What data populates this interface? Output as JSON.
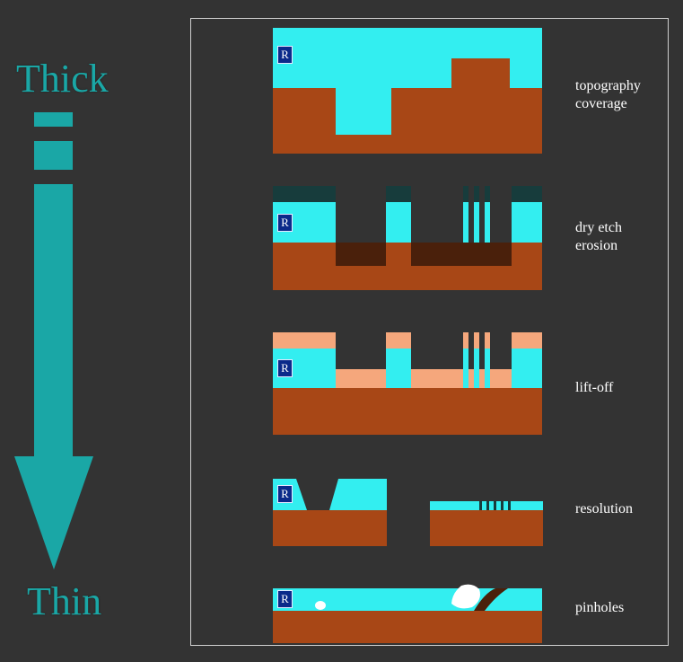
{
  "scale": {
    "top_label": "Thick",
    "bottom_label": "Thin"
  },
  "badge_letter": "R",
  "rows": [
    {
      "label_line1": "topography",
      "label_line2": "coverage"
    },
    {
      "label_line1": "dry etch",
      "label_line2": "erosion"
    },
    {
      "label_line1": "lift-off",
      "label_line2": ""
    },
    {
      "label_line1": "resolution",
      "label_line2": ""
    },
    {
      "label_line1": "pinholes",
      "label_line2": ""
    }
  ],
  "colors": {
    "background": "#333333",
    "resist": "#33eef0",
    "substrate": "#a84716",
    "lift_off_metal": "#f5a77c",
    "etch_mask": "#173c3c",
    "etched_recess": "#4a200b",
    "arrow": "#1aa7a6",
    "pinhole": "#ffffff"
  }
}
